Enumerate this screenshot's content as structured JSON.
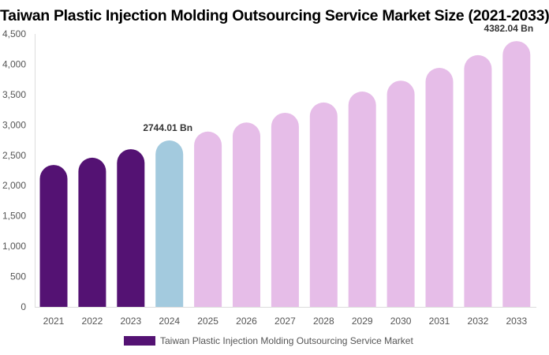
{
  "chart_data": {
    "type": "bar",
    "title": "Taiwan Plastic Injection Molding Outsourcing Service Market Size (2021-2033)",
    "categories": [
      "2021",
      "2022",
      "2023",
      "2024",
      "2025",
      "2026",
      "2027",
      "2028",
      "2029",
      "2030",
      "2031",
      "2032",
      "2033"
    ],
    "series": [
      {
        "name": "Taiwan Plastic Injection Molding Outsourcing Service Market",
        "values": [
          2340,
          2460,
          2600,
          2744.01,
          2890,
          3040,
          3200,
          3370,
          3550,
          3730,
          3940,
          4150,
          4382.04
        ]
      }
    ],
    "data_labels": {
      "3": "2744.01 Bn",
      "12": "4382.04 Bn"
    },
    "yticks": [
      "0",
      "500",
      "1,000",
      "1,500",
      "2,000",
      "2,500",
      "3,000",
      "3,500",
      "4,000",
      "4,500"
    ],
    "ylim": [
      0,
      4500
    ],
    "grid": false,
    "legend_position": "bottom",
    "colors": {
      "historical": "#541273",
      "current": "#a3cade",
      "forecast": "#e6bde8"
    }
  }
}
